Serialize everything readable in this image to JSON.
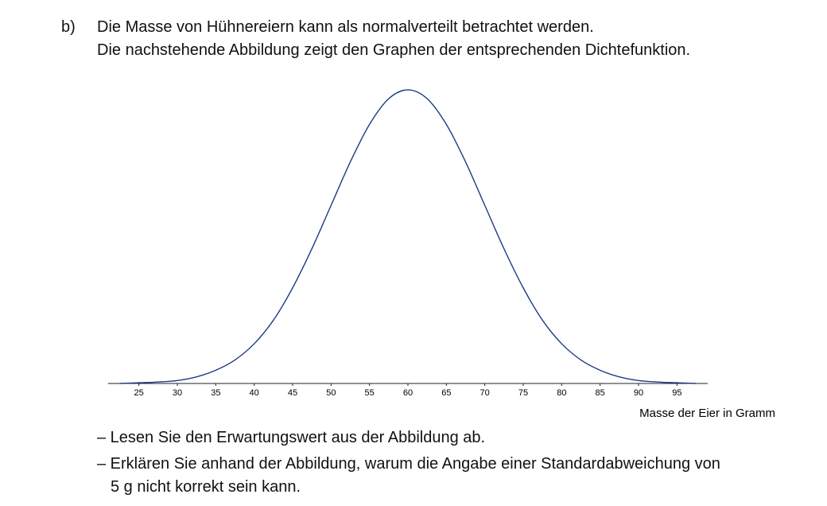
{
  "task": {
    "label": "b)",
    "intro": [
      "Die Masse von Hühnereiern kann als normalverteilt betrachtet werden.",
      "Die nachstehende Abbildung zeigt den Graphen der entsprechenden Dichtefunktion."
    ]
  },
  "chart_data": {
    "type": "line",
    "xlabel": "Masse der Eier in Gramm",
    "x": [
      22.5,
      25,
      27.5,
      30,
      32.5,
      35,
      37.5,
      40,
      42.5,
      45,
      47.5,
      50,
      52.5,
      55,
      57.5,
      60,
      62.5,
      65,
      67.5,
      70,
      72.5,
      75,
      77.5,
      80,
      82.5,
      85,
      87.5,
      90,
      92.5,
      95,
      97.5
    ],
    "series": [
      {
        "color": "#1f3a8a",
        "values": [
          0,
          0.0001,
          0.0002,
          0.0004,
          0.0009,
          0.0018,
          0.0032,
          0.0054,
          0.0086,
          0.013,
          0.0183,
          0.0242,
          0.0301,
          0.0352,
          0.0387,
          0.0399,
          0.0387,
          0.0352,
          0.0301,
          0.0242,
          0.0183,
          0.013,
          0.0086,
          0.0054,
          0.0032,
          0.0018,
          0.0009,
          0.0004,
          0.0002,
          0.0001,
          0
        ]
      }
    ],
    "xlim": [
      21,
      99
    ],
    "ylim": [
      0,
      0.04
    ],
    "xticks": [
      25,
      30,
      35,
      40,
      45,
      50,
      55,
      60,
      65,
      70,
      75,
      80,
      85,
      90,
      95
    ]
  },
  "questions": [
    {
      "lines": [
        "– Lesen Sie den Erwartungswert aus der Abbildung ab."
      ]
    },
    {
      "lines": [
        "– Erklären Sie anhand der Abbildung, warum die Angabe einer Standardabweichung von",
        "5 g nicht korrekt sein kann."
      ]
    }
  ]
}
